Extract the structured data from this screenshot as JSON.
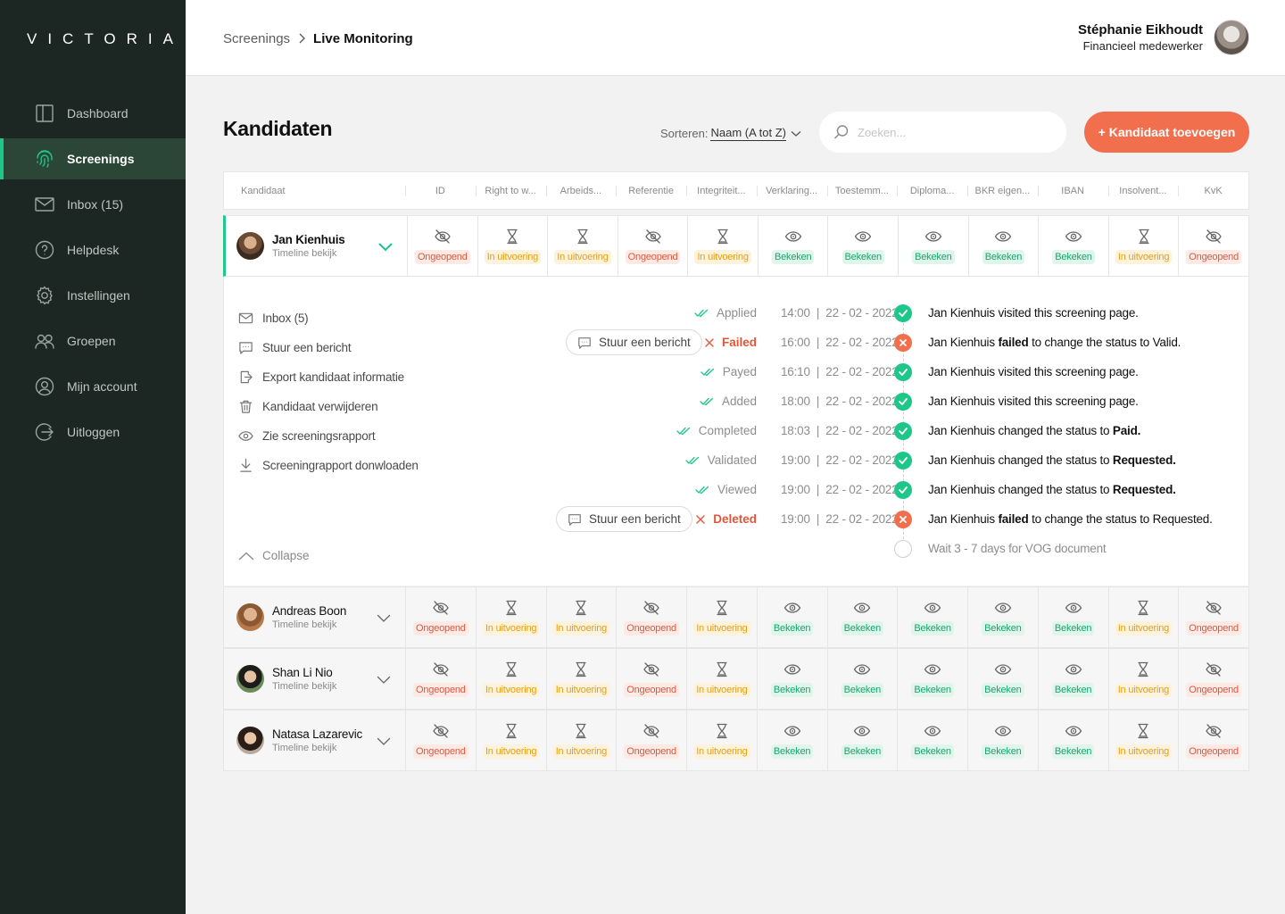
{
  "app": {
    "logo": "VICTORIA"
  },
  "sidebar": {
    "items": [
      {
        "label": "Dashboard",
        "icon": "dashboard-icon",
        "active": false
      },
      {
        "label": "Screenings",
        "icon": "fingerprint-icon",
        "active": true
      },
      {
        "label": "Inbox (15)",
        "icon": "mail-icon",
        "active": false
      },
      {
        "label": "Helpdesk",
        "icon": "help-icon",
        "active": false
      },
      {
        "label": "Instellingen",
        "icon": "gear-icon",
        "active": false
      },
      {
        "label": "Groepen",
        "icon": "users-icon",
        "active": false
      },
      {
        "label": "Mijn account",
        "icon": "account-icon",
        "active": false
      },
      {
        "label": "Uitloggen",
        "icon": "logout-icon",
        "active": false
      }
    ]
  },
  "header": {
    "breadcrumb_root": "Screenings",
    "breadcrumb_current": "Live Monitoring",
    "user_name": "Stéphanie Eikhoudt",
    "user_role": "Financieel medewerker"
  },
  "main": {
    "title": "Kandidaten",
    "sort_label": "Sorteren:",
    "sort_value": "Naam (A tot Z)",
    "search_placeholder": "Zoeken...",
    "add_button": "+ Kandidaat toevoegen"
  },
  "table": {
    "first_column": "Kandidaat",
    "columns": [
      "ID",
      "Right to w...",
      "Arbeids...",
      "Referentie",
      "Integriteit...",
      "Verklaring...",
      "Toestemm...",
      "Diploma...",
      "BKR eigen...",
      "IBAN",
      "Insolvent...",
      "KvK"
    ],
    "status_labels": {
      "red": "Ongeopend",
      "orange": "In uitvoering",
      "green": "Bekeken"
    },
    "row_statuses": [
      "red",
      "orange",
      "orange",
      "red",
      "orange",
      "green",
      "green",
      "green",
      "green",
      "green",
      "orange",
      "red"
    ],
    "rows": [
      {
        "name": "Jan Kienhuis",
        "sub": "Timeline bekijk",
        "expanded": true
      },
      {
        "name": "Andreas Boon",
        "sub": "Timeline bekijk",
        "expanded": false
      },
      {
        "name": "Shan Li Nio",
        "sub": "Timeline bekijk",
        "expanded": false
      },
      {
        "name": "Natasa Lazarevic",
        "sub": "Timeline bekijk",
        "expanded": false
      }
    ]
  },
  "details": {
    "actions": [
      {
        "label": "Inbox (5)",
        "icon": "mail-icon"
      },
      {
        "label": "Stuur een bericht",
        "icon": "message-icon"
      },
      {
        "label": "Export kandidaat informatie",
        "icon": "export-icon"
      },
      {
        "label": "Kandidaat verwijderen",
        "icon": "trash-icon"
      },
      {
        "label": "Zie screeningsrapport",
        "icon": "eye-icon"
      },
      {
        "label": "Screeningrapport donwloaden",
        "icon": "download-icon"
      }
    ],
    "collapse_label": "Collapse",
    "message_button": "Stuur een bericht",
    "timeline": [
      {
        "status": "Applied",
        "type": "ok",
        "time": "14:00  |  22 - 02 - 2022",
        "pre": "Jan Kienhuis visited this screening page.",
        "bold": "",
        "post": ""
      },
      {
        "status": "Failed",
        "type": "fail",
        "time": "16:00  |  22 - 02 - 2022",
        "pre": "Jan Kienhuis ",
        "bold": "failed",
        "post": " to change the status to Valid.",
        "button": true
      },
      {
        "status": "Payed",
        "type": "ok",
        "time": "16:10  |  22 - 02 - 2022",
        "pre": "Jan Kienhuis visited this screening page.",
        "bold": "",
        "post": ""
      },
      {
        "status": "Added",
        "type": "ok",
        "time": "18:00  |  22 - 02 - 2022",
        "pre": "Jan Kienhuis visited this screening page.",
        "bold": "",
        "post": ""
      },
      {
        "status": "Completed",
        "type": "ok",
        "time": "18:03  |  22 - 02 - 2022",
        "pre": "Jan Kienhuis changed the status to ",
        "bold": "Paid.",
        "post": ""
      },
      {
        "status": "Validated",
        "type": "ok",
        "time": "19:00  |  22 - 02 - 2022",
        "pre": "Jan Kienhuis changed the status to ",
        "bold": "Requested.",
        "post": ""
      },
      {
        "status": "Viewed",
        "type": "ok",
        "time": "19:00  |  22 - 02 - 2022",
        "pre": "Jan Kienhuis changed the status to ",
        "bold": "Requested.",
        "post": ""
      },
      {
        "status": "Deleted",
        "type": "fail",
        "time": "19:00  |  22 - 02 - 2022",
        "pre": "Jan Kienhuis ",
        "bold": "failed",
        "post": " to change the status to Requested.",
        "button": true
      },
      {
        "status": "",
        "type": "pending",
        "time": "",
        "pre": "Wait 3 - 7 days for VOG document",
        "bold": "",
        "post": ""
      }
    ]
  },
  "colors": {
    "sidebar_bg": "#1c2723",
    "accent_green": "#1fc68a",
    "accent_orange": "#f26f4e",
    "badge_red": "#e2553a",
    "badge_orange": "#e89e10",
    "badge_green": "#19a56e"
  }
}
